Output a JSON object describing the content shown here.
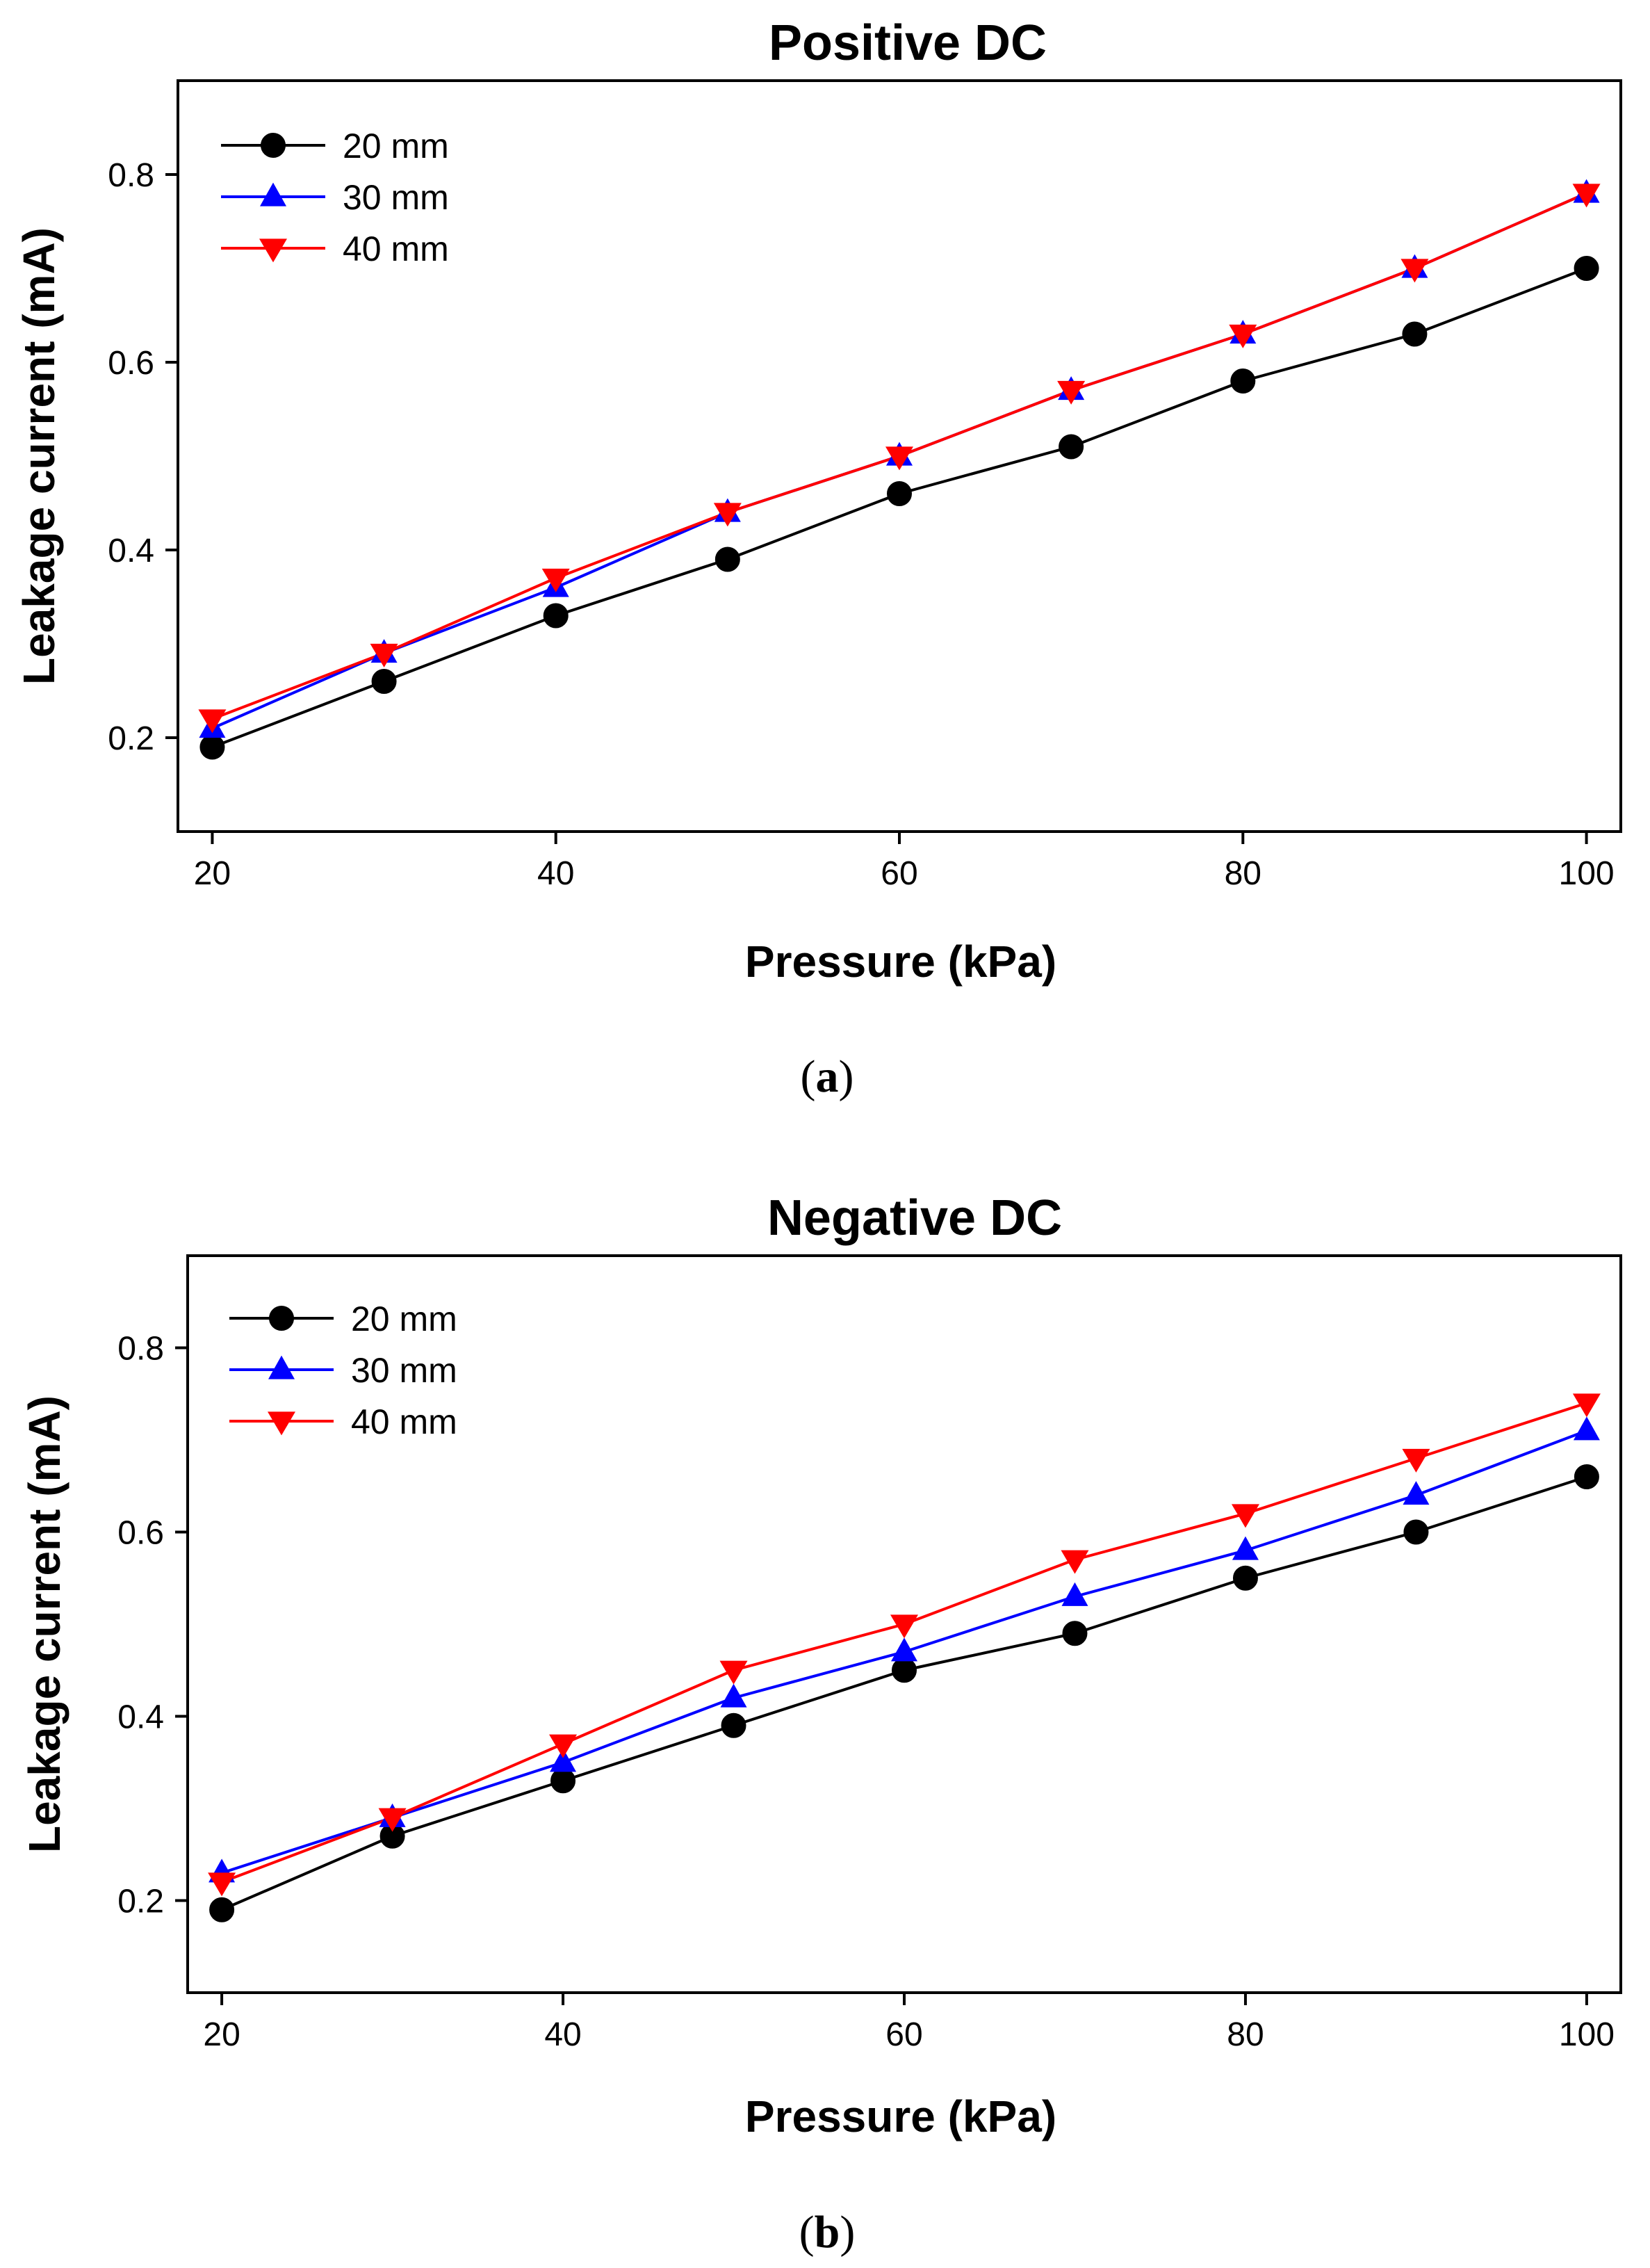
{
  "chart_data": [
    {
      "type": "line",
      "title": "Positive DC",
      "xlabel": "Pressure (kPa)",
      "ylabel": "Leakage current (mA)",
      "caption_letter": "a",
      "xlim": [
        18,
        102
      ],
      "ylim": [
        0.1,
        0.9
      ],
      "xticks": [
        20,
        40,
        60,
        80,
        100
      ],
      "yticks": [
        0.2,
        0.4,
        0.6,
        0.8
      ],
      "legend_position": "top-left",
      "grid": false,
      "x": [
        20,
        30,
        40,
        50,
        60,
        70,
        80,
        90,
        100
      ],
      "series": [
        {
          "name": "20 mm",
          "color": "#000000",
          "marker": "circle",
          "values": [
            0.19,
            0.26,
            0.33,
            0.39,
            0.46,
            0.51,
            0.58,
            0.63,
            0.7
          ]
        },
        {
          "name": "30 mm",
          "color": "#0000ff",
          "marker": "triangle-up",
          "values": [
            0.21,
            0.29,
            0.36,
            0.44,
            0.5,
            0.57,
            0.63,
            0.7,
            0.78
          ]
        },
        {
          "name": "40 mm",
          "color": "#ff0000",
          "marker": "triangle-down",
          "values": [
            0.22,
            0.29,
            0.37,
            0.44,
            0.5,
            0.57,
            0.63,
            0.7,
            0.78
          ]
        }
      ]
    },
    {
      "type": "line",
      "title": "Negative DC",
      "xlabel": "Pressure (kPa)",
      "ylabel": "Leakage current (mA)",
      "caption_letter": "b",
      "xlim": [
        18,
        102
      ],
      "ylim": [
        0.1,
        0.9
      ],
      "xticks": [
        20,
        40,
        60,
        80,
        100
      ],
      "yticks": [
        0.2,
        0.4,
        0.6,
        0.8
      ],
      "legend_position": "top-left",
      "grid": false,
      "x": [
        20,
        30,
        40,
        50,
        60,
        70,
        80,
        90,
        100
      ],
      "series": [
        {
          "name": "20 mm",
          "color": "#000000",
          "marker": "circle",
          "values": [
            0.19,
            0.27,
            0.33,
            0.39,
            0.45,
            0.49,
            0.55,
            0.6,
            0.66
          ]
        },
        {
          "name": "30 mm",
          "color": "#0000ff",
          "marker": "triangle-up",
          "values": [
            0.23,
            0.29,
            0.35,
            0.42,
            0.47,
            0.53,
            0.58,
            0.64,
            0.71
          ]
        },
        {
          "name": "40 mm",
          "color": "#ff0000",
          "marker": "triangle-down",
          "values": [
            0.22,
            0.29,
            0.37,
            0.45,
            0.5,
            0.57,
            0.62,
            0.68,
            0.74
          ]
        }
      ]
    }
  ]
}
